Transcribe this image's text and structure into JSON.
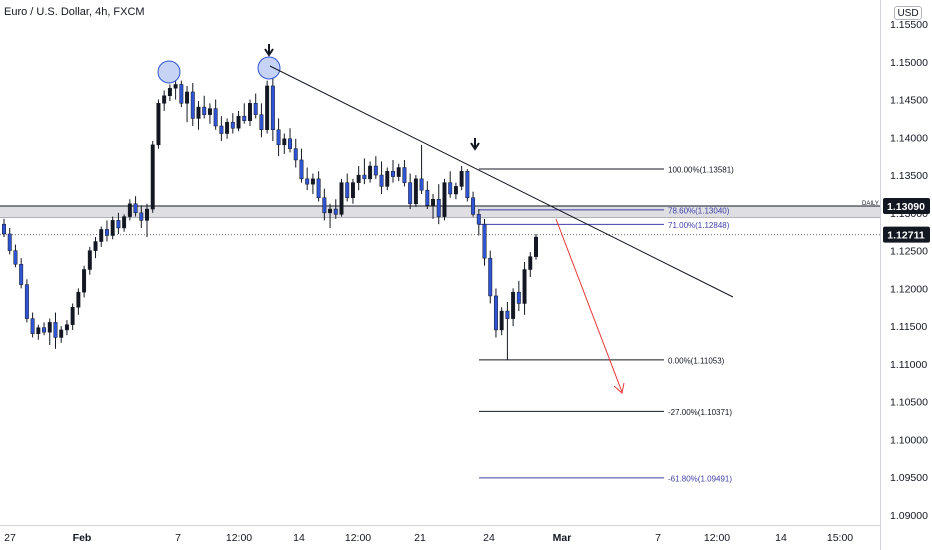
{
  "header": {
    "title": "Euro / U.S. Dollar, 4h, FXCM",
    "currency": "USD"
  },
  "chart_data": {
    "type": "candlestick",
    "ylim": [
      1.089,
      1.158
    ],
    "y_ticks": [
      "1.15500",
      "1.15000",
      "1.14500",
      "1.14000",
      "1.13500",
      "1.13000",
      "1.12500",
      "1.12000",
      "1.11500",
      "1.11000",
      "1.10500",
      "1.10000",
      "1.09500",
      "1.09000"
    ],
    "x_ticks": [
      "27",
      "Feb",
      "7",
      "12:00",
      "14",
      "12:00",
      "21",
      "24",
      "Mar",
      "7",
      "12:00",
      "14",
      "15:00"
    ],
    "price_labels": [
      {
        "text": "1.13090",
        "value": 1.1309
      },
      {
        "text": "1.12711",
        "value": 1.12711
      }
    ],
    "daily_zone": {
      "label": "DAILY",
      "top": 1.1309,
      "bottom": 1.1294
    },
    "fib_levels": [
      {
        "label": "100.00%(1.13581)",
        "value": 1.13581,
        "color": "#131722"
      },
      {
        "label": "78.60%(1.13040)",
        "value": 1.1304,
        "color": "#3f3fa8"
      },
      {
        "label": "71.00%(1.12848)",
        "value": 1.12848,
        "color": "#3f3fa8"
      },
      {
        "label": "0.00%(1.11053)",
        "value": 1.11053,
        "color": "#131722"
      },
      {
        "label": "-27.00%(1.10371)",
        "value": 1.10371,
        "color": "#131722"
      },
      {
        "label": "-61.80%(1.09491)",
        "value": 1.09491,
        "color": "#3f3fa8"
      }
    ],
    "candles": [
      [
        1.1285,
        1.1292,
        1.1268,
        1.1272
      ],
      [
        1.1272,
        1.128,
        1.1245,
        1.125
      ],
      [
        1.125,
        1.1258,
        1.1228,
        1.1232
      ],
      [
        1.1232,
        1.124,
        1.12,
        1.1205
      ],
      [
        1.1205,
        1.1212,
        1.1155,
        1.116
      ],
      [
        1.116,
        1.1168,
        1.1135,
        1.114
      ],
      [
        1.114,
        1.1152,
        1.1132,
        1.1148
      ],
      [
        1.1148,
        1.1155,
        1.1138,
        1.1142
      ],
      [
        1.1142,
        1.116,
        1.1125,
        1.1155
      ],
      [
        1.1155,
        1.1168,
        1.112,
        1.1135
      ],
      [
        1.1135,
        1.115,
        1.1128,
        1.1145
      ],
      [
        1.1145,
        1.1158,
        1.1138,
        1.1152
      ],
      [
        1.1152,
        1.118,
        1.1145,
        1.1175
      ],
      [
        1.1175,
        1.12,
        1.1165,
        1.1195
      ],
      [
        1.1195,
        1.123,
        1.1188,
        1.1225
      ],
      [
        1.1225,
        1.1255,
        1.1218,
        1.125
      ],
      [
        1.125,
        1.1268,
        1.124,
        1.1262
      ],
      [
        1.1262,
        1.1282,
        1.1255,
        1.1278
      ],
      [
        1.1278,
        1.129,
        1.1262,
        1.127
      ],
      [
        1.127,
        1.1295,
        1.1265,
        1.129
      ],
      [
        1.129,
        1.13,
        1.1272,
        1.128
      ],
      [
        1.128,
        1.1298,
        1.1275,
        1.1295
      ],
      [
        1.1295,
        1.1318,
        1.129,
        1.1312
      ],
      [
        1.1312,
        1.1322,
        1.1295,
        1.13
      ],
      [
        1.13,
        1.131,
        1.128,
        1.129
      ],
      [
        1.129,
        1.1312,
        1.1268,
        1.1305
      ],
      [
        1.1305,
        1.1395,
        1.13,
        1.139
      ],
      [
        1.139,
        1.145,
        1.1385,
        1.1445
      ],
      [
        1.1445,
        1.1462,
        1.1435,
        1.1455
      ],
      [
        1.1455,
        1.147,
        1.1448,
        1.1465
      ],
      [
        1.1465,
        1.148,
        1.145,
        1.147
      ],
      [
        1.147,
        1.1475,
        1.144,
        1.1445
      ],
      [
        1.1445,
        1.1468,
        1.142,
        1.146
      ],
      [
        1.146,
        1.1472,
        1.1415,
        1.1425
      ],
      [
        1.1425,
        1.1448,
        1.141,
        1.144
      ],
      [
        1.144,
        1.1455,
        1.1425,
        1.143
      ],
      [
        1.143,
        1.1445,
        1.1418,
        1.1438
      ],
      [
        1.1438,
        1.145,
        1.141,
        1.1415
      ],
      [
        1.1415,
        1.1428,
        1.1395,
        1.1405
      ],
      [
        1.1405,
        1.1425,
        1.1398,
        1.142
      ],
      [
        1.142,
        1.1432,
        1.1405,
        1.1412
      ],
      [
        1.1412,
        1.1435,
        1.1408,
        1.1428
      ],
      [
        1.1428,
        1.1445,
        1.1418,
        1.1422
      ],
      [
        1.1422,
        1.145,
        1.1415,
        1.1445
      ],
      [
        1.1445,
        1.1458,
        1.1425,
        1.143
      ],
      [
        1.143,
        1.1445,
        1.14,
        1.141
      ],
      [
        1.141,
        1.1475,
        1.1405,
        1.1468
      ],
      [
        1.1468,
        1.1495,
        1.1395,
        1.141
      ],
      [
        1.141,
        1.1425,
        1.1375,
        1.139
      ],
      [
        1.139,
        1.1405,
        1.1378,
        1.1398
      ],
      [
        1.1398,
        1.1412,
        1.138,
        1.1385
      ],
      [
        1.1385,
        1.1398,
        1.136,
        1.137
      ],
      [
        1.137,
        1.1385,
        1.134,
        1.1345
      ],
      [
        1.1345,
        1.136,
        1.133,
        1.1338
      ],
      [
        1.1338,
        1.1352,
        1.1325,
        1.1345
      ],
      [
        1.1345,
        1.1355,
        1.1315,
        1.132
      ],
      [
        1.132,
        1.1332,
        1.129,
        1.13
      ],
      [
        1.13,
        1.1312,
        1.128,
        1.1305
      ],
      [
        1.1305,
        1.1318,
        1.1292,
        1.1298
      ],
      [
        1.1298,
        1.1345,
        1.1295,
        1.134
      ],
      [
        1.134,
        1.1352,
        1.1315,
        1.132
      ],
      [
        1.132,
        1.1345,
        1.1312,
        1.134
      ],
      [
        1.134,
        1.1362,
        1.133,
        1.135
      ],
      [
        1.135,
        1.1372,
        1.1338,
        1.1345
      ],
      [
        1.1345,
        1.1368,
        1.134,
        1.1362
      ],
      [
        1.1362,
        1.1375,
        1.1345,
        1.135
      ],
      [
        1.135,
        1.1368,
        1.1325,
        1.1335
      ],
      [
        1.1335,
        1.136,
        1.133,
        1.1355
      ],
      [
        1.1355,
        1.137,
        1.134,
        1.1348
      ],
      [
        1.1348,
        1.1365,
        1.1342,
        1.136
      ],
      [
        1.136,
        1.137,
        1.1335,
        1.134
      ],
      [
        1.134,
        1.1352,
        1.1305,
        1.1312
      ],
      [
        1.1312,
        1.135,
        1.1308,
        1.1345
      ],
      [
        1.1345,
        1.139,
        1.1325,
        1.133
      ],
      [
        1.133,
        1.1342,
        1.1305,
        1.131
      ],
      [
        1.131,
        1.1325,
        1.1292,
        1.1318
      ],
      [
        1.1318,
        1.1338,
        1.1285,
        1.1295
      ],
      [
        1.1295,
        1.1345,
        1.129,
        1.134
      ],
      [
        1.134,
        1.1355,
        1.132,
        1.1325
      ],
      [
        1.1325,
        1.134,
        1.1318,
        1.1335
      ],
      [
        1.1335,
        1.1362,
        1.133,
        1.1355
      ],
      [
        1.1355,
        1.1358,
        1.1315,
        1.132
      ],
      [
        1.132,
        1.1328,
        1.1295,
        1.1298
      ],
      [
        1.1298,
        1.1305,
        1.127,
        1.1285
      ],
      [
        1.1285,
        1.1292,
        1.123,
        1.124
      ],
      [
        1.124,
        1.125,
        1.118,
        1.119
      ],
      [
        1.119,
        1.12,
        1.1135,
        1.1145
      ],
      [
        1.1145,
        1.1175,
        1.1138,
        1.117
      ],
      [
        1.117,
        1.1182,
        1.1105,
        1.116
      ],
      [
        1.116,
        1.12,
        1.115,
        1.1195
      ],
      [
        1.1195,
        1.121,
        1.117,
        1.118
      ],
      [
        1.118,
        1.1235,
        1.1165,
        1.1225
      ],
      [
        1.1225,
        1.1248,
        1.1215,
        1.1242
      ],
      [
        1.1242,
        1.1272,
        1.1238,
        1.1268
      ]
    ]
  }
}
